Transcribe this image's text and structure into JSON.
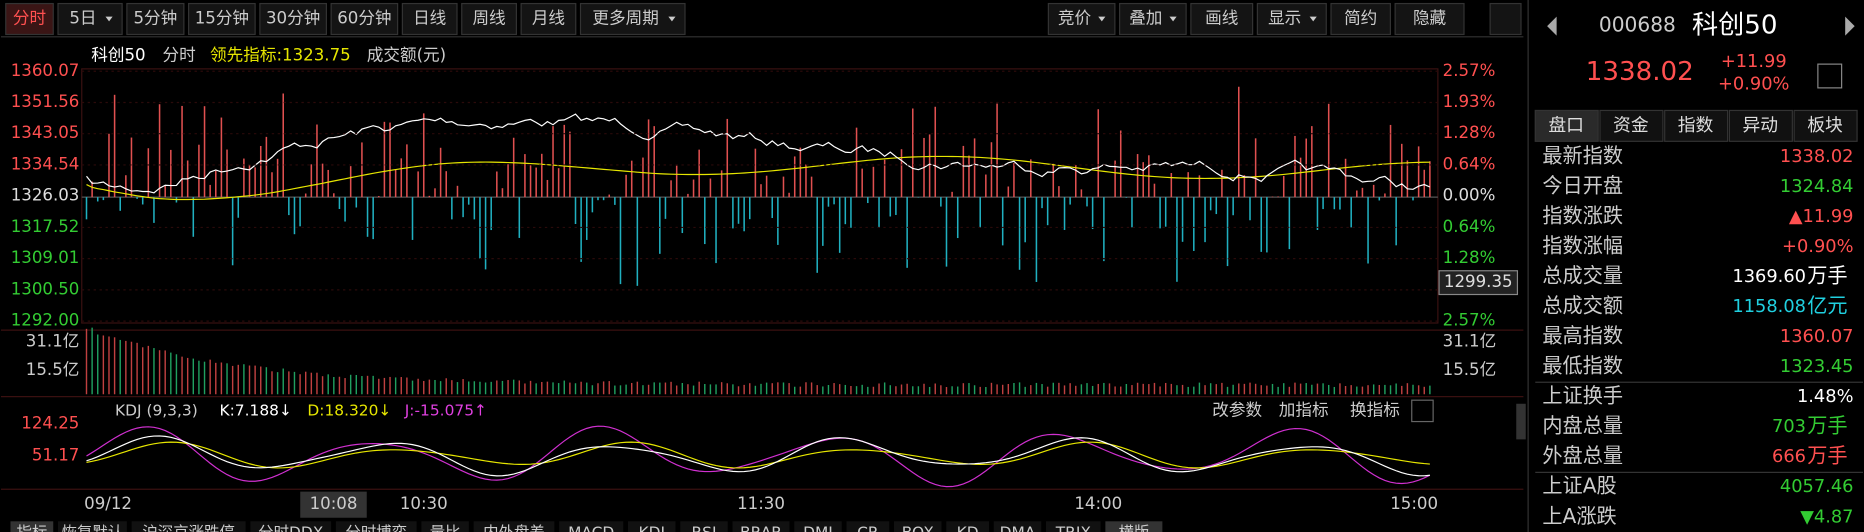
{
  "toolbar": {
    "left": [
      "分时",
      "5日",
      "5分钟",
      "15分钟",
      "30分钟",
      "60分钟",
      "日线",
      "周线",
      "月线",
      "更多周期"
    ],
    "right": [
      "竞价",
      "叠加",
      "画线",
      "显示",
      "简约",
      "隐藏"
    ]
  },
  "chart": {
    "legend": [
      "科创50",
      "分时",
      "领先指标:1323.75",
      "成交额(元)"
    ],
    "left_axis": [
      "1360.07",
      "1351.56",
      "1343.05",
      "1334.54",
      "1326.03",
      "1317.52",
      "1309.01",
      "1300.50",
      "1292.00"
    ],
    "right_axis": [
      "2.57%",
      "1.93%",
      "1.28%",
      "0.64%",
      "0.00%",
      "0.64%",
      "1.28%",
      "1.93%",
      "2.57%"
    ],
    "cursor_value": "1299.35",
    "volume_axis": [
      "31.1亿",
      "15.5亿"
    ],
    "kdj": {
      "name": "KDJ (9,3,3)",
      "k": "K:7.188↓",
      "d": "D:18.320↓",
      "j": "J:-15.075↑",
      "axis": [
        "124.25",
        "51.17"
      ],
      "buttons": [
        "改参数",
        "加指标",
        "换指标"
      ]
    },
    "time_axis": [
      "09/12",
      "10:08",
      "10:30",
      "11:30",
      "14:00",
      "15:00"
    ]
  },
  "bottom_tabs": [
    "指标",
    "恢复默认",
    "沪深京涨跌停",
    "分时DDX",
    "分时博弈",
    "量比",
    "内外盘差",
    "MACD",
    "KDJ",
    "RSI",
    "BRAR",
    "DMI",
    "CR",
    "BOX",
    "KD",
    "DMA",
    "TRIX",
    "横版"
  ],
  "sidebar": {
    "code": "000688",
    "name": "科创50",
    "price": "1338.02",
    "change": "+11.99",
    "pct": "+0.90%",
    "tabs": [
      "盘口",
      "资金",
      "指数",
      "异动",
      "板块"
    ],
    "rows": [
      [
        "最新指数",
        "1338.02",
        ""
      ],
      [
        "今日开盘",
        "1324.84",
        ""
      ],
      [
        "指数涨跌",
        "▲11.99",
        ""
      ],
      [
        "指数涨幅",
        "+0.90%",
        ""
      ],
      [
        "总成交量",
        "1369.60",
        "万手"
      ],
      [
        "总成交额",
        "1158.08",
        "亿元"
      ],
      [
        "最高指数",
        "1360.07",
        ""
      ],
      [
        "最低指数",
        "1323.45",
        ""
      ],
      [
        "上证换手",
        "1.48%",
        ""
      ],
      [
        "内盘总量",
        "703",
        "万手"
      ],
      [
        "外盘总量",
        "666",
        "万手"
      ],
      [
        "上证A股",
        "4057.46",
        ""
      ],
      [
        "上A涨跌",
        "▼4.87",
        ""
      ]
    ]
  }
}
